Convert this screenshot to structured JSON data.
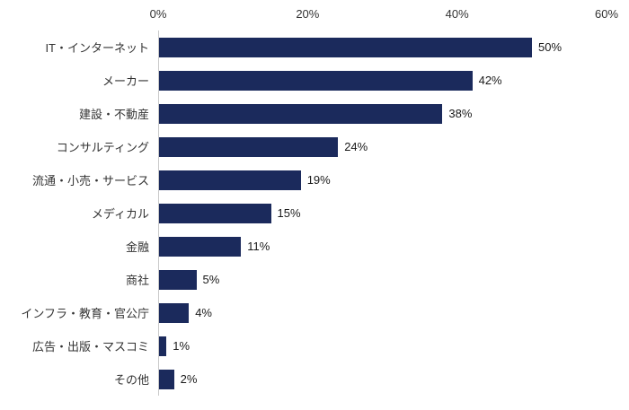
{
  "chart_data": {
    "type": "bar",
    "orientation": "horizontal",
    "title": "",
    "xlabel": "",
    "ylabel": "",
    "categories": [
      "IT・インターネット",
      "メーカー",
      "建設・不動産",
      "コンサルティング",
      "流通・小売・サービス",
      "メディカル",
      "金融",
      "商社",
      "インフラ・教育・官公庁",
      "広告・出版・マスコミ",
      "その他"
    ],
    "values": [
      50,
      42,
      38,
      24,
      19,
      15,
      11,
      5,
      4,
      1,
      2
    ],
    "value_labels": [
      "50%",
      "42%",
      "38%",
      "24%",
      "19%",
      "15%",
      "11%",
      "5%",
      "4%",
      "1%",
      "2%"
    ],
    "x_ticks": [
      "0%",
      "20%",
      "40%",
      "60%"
    ],
    "x_tick_values": [
      0,
      20,
      40,
      60
    ],
    "xlim": [
      0,
      60
    ],
    "grid": false,
    "legend": false,
    "bar_color": "#1b2a5c",
    "axis_line_color": "#c9c9c9",
    "label_color": "#333333",
    "background_color": "#ffffff"
  }
}
